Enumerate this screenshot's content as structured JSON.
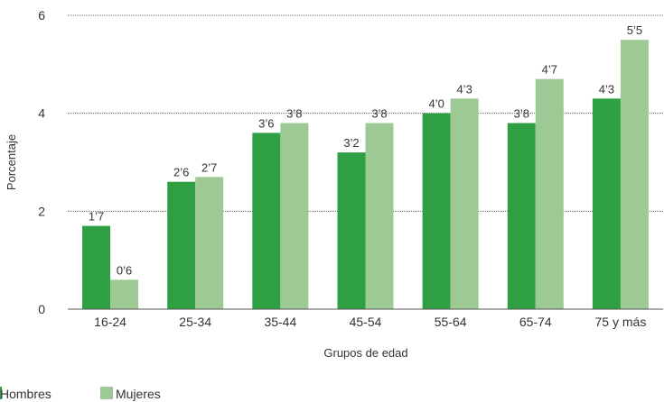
{
  "chart_data": {
    "type": "bar",
    "categories": [
      "16-24",
      "25-34",
      "35-44",
      "45-54",
      "55-64",
      "65-74",
      "75 y más"
    ],
    "series": [
      {
        "name": "Hombres",
        "color": "#2ea043",
        "values": [
          1.7,
          2.6,
          3.6,
          3.2,
          4.0,
          3.8,
          4.3
        ],
        "labels": [
          "1’7",
          "2’6",
          "3’6",
          "3’2",
          "4’0",
          "3’8",
          "4’3"
        ]
      },
      {
        "name": "Mujeres",
        "color": "#9cc994",
        "values": [
          0.6,
          2.7,
          3.8,
          3.8,
          4.3,
          4.7,
          5.5
        ],
        "labels": [
          "0’6",
          "2’7",
          "3’8",
          "3’8",
          "4’3",
          "4’7",
          "5’5"
        ]
      }
    ],
    "xlabel": "Grupos de edad",
    "ylabel": "Porcentaje",
    "ylim": [
      0,
      6
    ],
    "yticks": [
      0,
      2,
      4,
      6
    ],
    "grid": true,
    "legend": "bottom-left"
  }
}
